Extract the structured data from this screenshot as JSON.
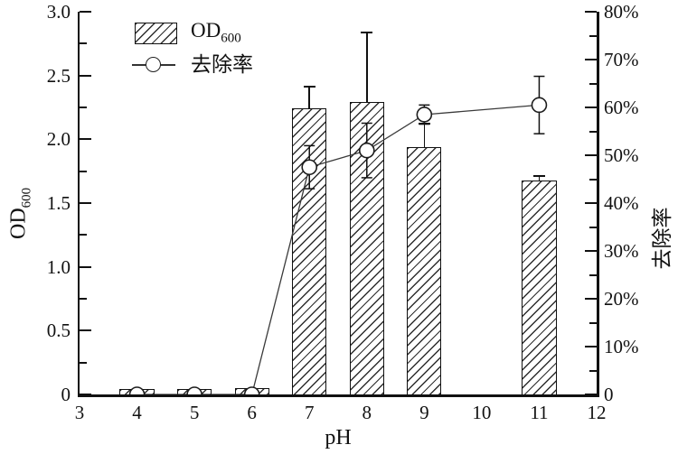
{
  "chart_data": {
    "type": "bar",
    "subtype": "dual-axis bar + line with error bars",
    "title": "",
    "x": {
      "label": "pH",
      "min": 3,
      "max": 12,
      "tick_labels": [
        "3",
        "4",
        "5",
        "6",
        "7",
        "8",
        "9",
        "10",
        "11",
        "12"
      ]
    },
    "y_left": {
      "label_main": "OD",
      "label_sub": "600",
      "min": 0,
      "max": 3,
      "major_step": 0.5,
      "minor_step": 0.25,
      "tick_labels_top_down": [
        "3.0",
        "2.5",
        "2.0",
        "1.5",
        "1.0",
        "0.5",
        "0"
      ]
    },
    "y_right": {
      "label": "去除率",
      "min": 0,
      "max": 80,
      "major_step": 10,
      "minor_step": 5,
      "tick_labels_top_down": [
        "80%",
        "70%",
        "60%",
        "50%",
        "40%",
        "30%",
        "20%",
        "10%",
        "0"
      ]
    },
    "categories_ph": [
      4,
      5,
      6,
      7,
      8,
      9,
      11
    ],
    "series": [
      {
        "name_main": "OD",
        "name_sub": "600",
        "type": "bar",
        "axis": "left",
        "values": [
          0.04,
          0.04,
          0.05,
          2.24,
          2.29,
          1.94,
          1.68
        ],
        "errors_plus": [
          0,
          0,
          0,
          0.17,
          0.55,
          0.18,
          0.03
        ]
      },
      {
        "name": "去除率",
        "type": "line",
        "axis": "right",
        "marker": "open-circle",
        "values_percent": [
          0,
          0,
          0,
          47.5,
          51,
          58.5,
          60.5
        ],
        "errors_percent": [
          0,
          0,
          0,
          4.5,
          5.7,
          2,
          6
        ]
      }
    ],
    "grid": false,
    "legend_position": "top-left-inside",
    "bar_width_ph_units": 0.6
  },
  "legend": {
    "items": [
      {
        "swatch": "hatched-bar",
        "label_main": "OD",
        "label_sub": "600"
      },
      {
        "swatch": "line-open-circle",
        "label": "去除率"
      }
    ]
  },
  "colors": {
    "foreground": "#111111",
    "background": "#ffffff",
    "hatch": "#2e2e2e",
    "line": "#3a3a3a"
  }
}
